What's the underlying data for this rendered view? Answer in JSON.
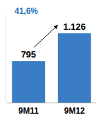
{
  "chart_data": {
    "type": "bar",
    "categories": [
      "9M11",
      "9M12"
    ],
    "values": [
      795,
      1126
    ],
    "value_labels": [
      "795",
      "1.126"
    ],
    "data_labels": true,
    "color": "#3b7dc4",
    "ylim": [
      300,
      1350
    ],
    "tick_labels": "x",
    "annotation": "41,6%"
  }
}
